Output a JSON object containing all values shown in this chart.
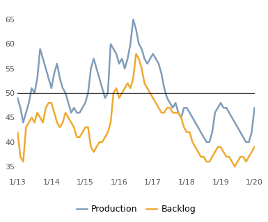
{
  "x_labels": [
    "1/13",
    "1/14",
    "1/15",
    "1/16",
    "1/17",
    "1/18",
    "1/19",
    "1/20"
  ],
  "tick_positions": [
    0,
    12,
    24,
    36,
    48,
    60,
    72,
    84
  ],
  "production": [
    49,
    47,
    44,
    46,
    48,
    51,
    50,
    53,
    59,
    57,
    55,
    53,
    51,
    54,
    56,
    53,
    51,
    50,
    48,
    46,
    47,
    46,
    46,
    47,
    48,
    50,
    55,
    57,
    55,
    53,
    51,
    49,
    50,
    60,
    59,
    58,
    56,
    57,
    55,
    57,
    60,
    65,
    63,
    60,
    59,
    57,
    56,
    57,
    58,
    57,
    56,
    54,
    51,
    49,
    48,
    47,
    48,
    46,
    45,
    47,
    47,
    46,
    45,
    44,
    43,
    42,
    41,
    40,
    40,
    42,
    46,
    47,
    48,
    47,
    47,
    46,
    45,
    44,
    43,
    42,
    41,
    40,
    40,
    42,
    47
  ],
  "backlog": [
    42,
    37,
    36,
    43,
    44,
    45,
    44,
    46,
    45,
    44,
    47,
    48,
    48,
    46,
    44,
    43,
    44,
    46,
    45,
    44,
    43,
    41,
    41,
    42,
    43,
    43,
    39,
    38,
    39,
    40,
    40,
    41,
    42,
    44,
    50,
    51,
    49,
    50,
    51,
    52,
    51,
    53,
    58,
    57,
    55,
    52,
    51,
    50,
    49,
    48,
    47,
    46,
    46,
    47,
    47,
    46,
    46,
    46,
    45,
    43,
    42,
    42,
    40,
    39,
    38,
    37,
    37,
    36,
    36,
    37,
    38,
    39,
    39,
    38,
    37,
    37,
    36,
    35,
    36,
    37,
    37,
    36,
    37,
    38,
    39
  ],
  "production_color": "#7f9db9",
  "backlog_color": "#f0a830",
  "hline_y": 50,
  "hline_color": "#222222",
  "ylim": [
    33,
    68
  ],
  "yticks": [
    35,
    40,
    45,
    50,
    55,
    60,
    65
  ],
  "background_color": "#ffffff",
  "line_width": 1.8,
  "legend_labels": [
    "Production",
    "Backlog"
  ]
}
